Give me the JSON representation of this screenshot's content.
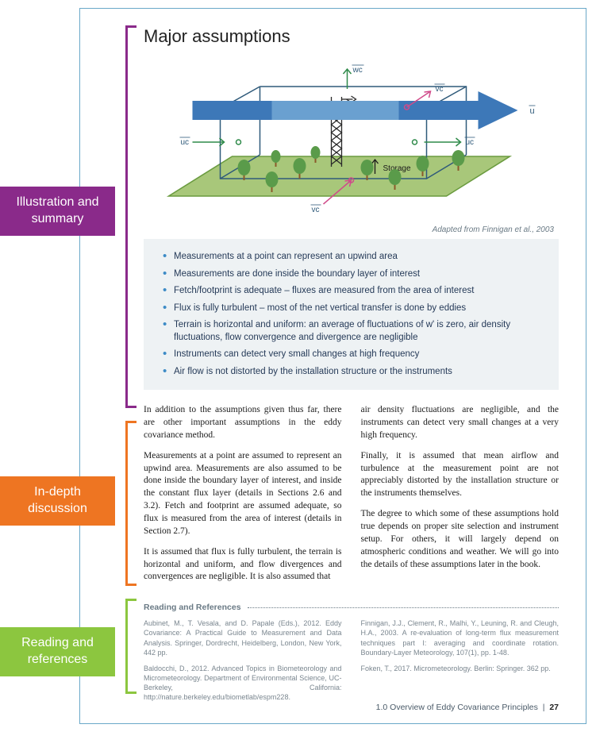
{
  "title": "Major assumptions",
  "caption": "Adapted from Finnigan et al., 2003",
  "diagram": {
    "background_color": "#ffffff",
    "ground_color": "#a8c77a",
    "ground_stroke": "#6a9b3f",
    "tree_trunk": "#8a5a2a",
    "tree_crown": "#5a9b4a",
    "box_stroke": "#2f5a7a",
    "big_arrow_fill": "#3d78b8",
    "big_arrow_mid": "#6aa0d0",
    "small_arrow_green": "#2f8a4a",
    "small_arrow_pink": "#d04a8a",
    "small_arrow_black": "#1a1a1a",
    "label_color": "#2f5a7a",
    "labels": {
      "wc": "w̄c̄",
      "vc": "v̄c̄",
      "uc": "ūc̄",
      "u": "ū",
      "storage": "Storage"
    }
  },
  "bullets": [
    "Measurements at a point can represent an upwind area",
    "Measurements are done inside the boundary layer of interest",
    "Fetch/footprint is adequate – fluxes are measured from the area of interest",
    "Flux is fully turbulent – most of the net vertical transfer is done by eddies",
    "Terrain is horizontal and uniform: an average of fluctuations of w' is zero, air density fluctuations, flow convergence and divergence are negligible",
    "Instruments can detect very small changes at high frequency",
    "Air flow is not distorted by the installation structure or the instruments"
  ],
  "body": {
    "left": [
      "In addition to the assumptions given thus far, there are other important assumptions in the eddy covariance method.",
      "Measurements at a point are assumed to represent an upwind area. Measurements are also assumed to be done inside the boundary layer of interest, and inside the constant flux layer (details in Sections 2.6 and 3.2). Fetch and footprint are assumed adequate, so flux is measured from the area of interest (details in Section 2.7).",
      "It is assumed that flux is fully turbulent, the terrain is horizontal and uniform, and flow divergences and convergences are negligible. It is also assumed that"
    ],
    "right": [
      "air density fluctuations are negligible, and the instruments can detect very small changes at a very high frequency.",
      "Finally, it is assumed that mean airflow and turbulence at the measurement point are not appreciably distorted by the installation structure or the instruments themselves.",
      "The degree to which some of these assumptions hold true depends on proper site selection and instrument setup. For others, it will largely depend on atmospheric conditions and weather. We will go into the details of these assumptions later in the book."
    ]
  },
  "refs_label": "Reading and References",
  "refs": {
    "left": [
      "Aubinet, M., T. Vesala, and D. Papale (Eds.), 2012. Eddy Covariance: A Practical Guide to Measurement and Data Analysis. Springer, Dordrecht, Heidelberg, London, New York, 442 pp.",
      "Baldocchi, D., 2012. Advanced Topics in Biometeorology and Micrometeorology. Department of Environmental Science, UC-Berkeley, California: http://nature.berkeley.edu/biometlab/espm228."
    ],
    "right": [
      "Finnigan, J.J., Clement, R., Malhi, Y., Leuning, R. and Cleugh, H.A., 2003. A re-evaluation of long-term flux measurement techniques part I: averaging and coordinate rotation. Boundary-Layer Meteorology, 107(1), pp. 1-48.",
      "Foken, T., 2017. Micrometeorology. Berlin: Springer. 362 pp."
    ]
  },
  "footer": {
    "section": "1.0 Overview of Eddy Covariance Principles",
    "page": "27"
  },
  "tabs": {
    "t1": "Illustration and summary",
    "t2": "In-depth discussion",
    "t3": "Reading and references"
  }
}
